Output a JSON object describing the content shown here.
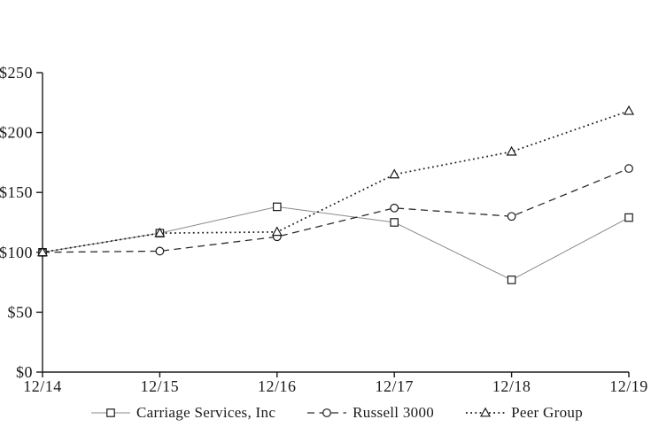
{
  "chart_data": {
    "type": "line",
    "title": "",
    "xlabel": "",
    "ylabel": "",
    "categories": [
      "12/14",
      "12/15",
      "12/16",
      "12/17",
      "12/18",
      "12/19"
    ],
    "series": [
      {
        "name": "Carriage Services, Inc",
        "marker": "square",
        "line_style": "solid",
        "line_color": "#8a8a8a",
        "marker_color": "#1a1a1a",
        "values": [
          100,
          116,
          138,
          125,
          77,
          129
        ]
      },
      {
        "name": "Russell 3000",
        "marker": "circle",
        "line_style": "dashed",
        "line_color": "#2b2b2b",
        "marker_color": "#1a1a1a",
        "values": [
          100,
          101,
          113,
          137,
          130,
          170
        ]
      },
      {
        "name": "Peer Group",
        "marker": "triangle",
        "line_style": "dotted",
        "line_color": "#1a1a1a",
        "marker_color": "#1a1a1a",
        "values": [
          100,
          116,
          117,
          165,
          184,
          218
        ]
      }
    ],
    "ylim": [
      0,
      250
    ],
    "ytick_interval": 50,
    "ytick_labels": [
      "$0",
      "$50",
      "$100",
      "$150",
      "$200",
      "$250"
    ],
    "grid": false,
    "legend_position": "bottom",
    "axis_color": "#1a1a1a",
    "background_color": "#ffffff"
  }
}
